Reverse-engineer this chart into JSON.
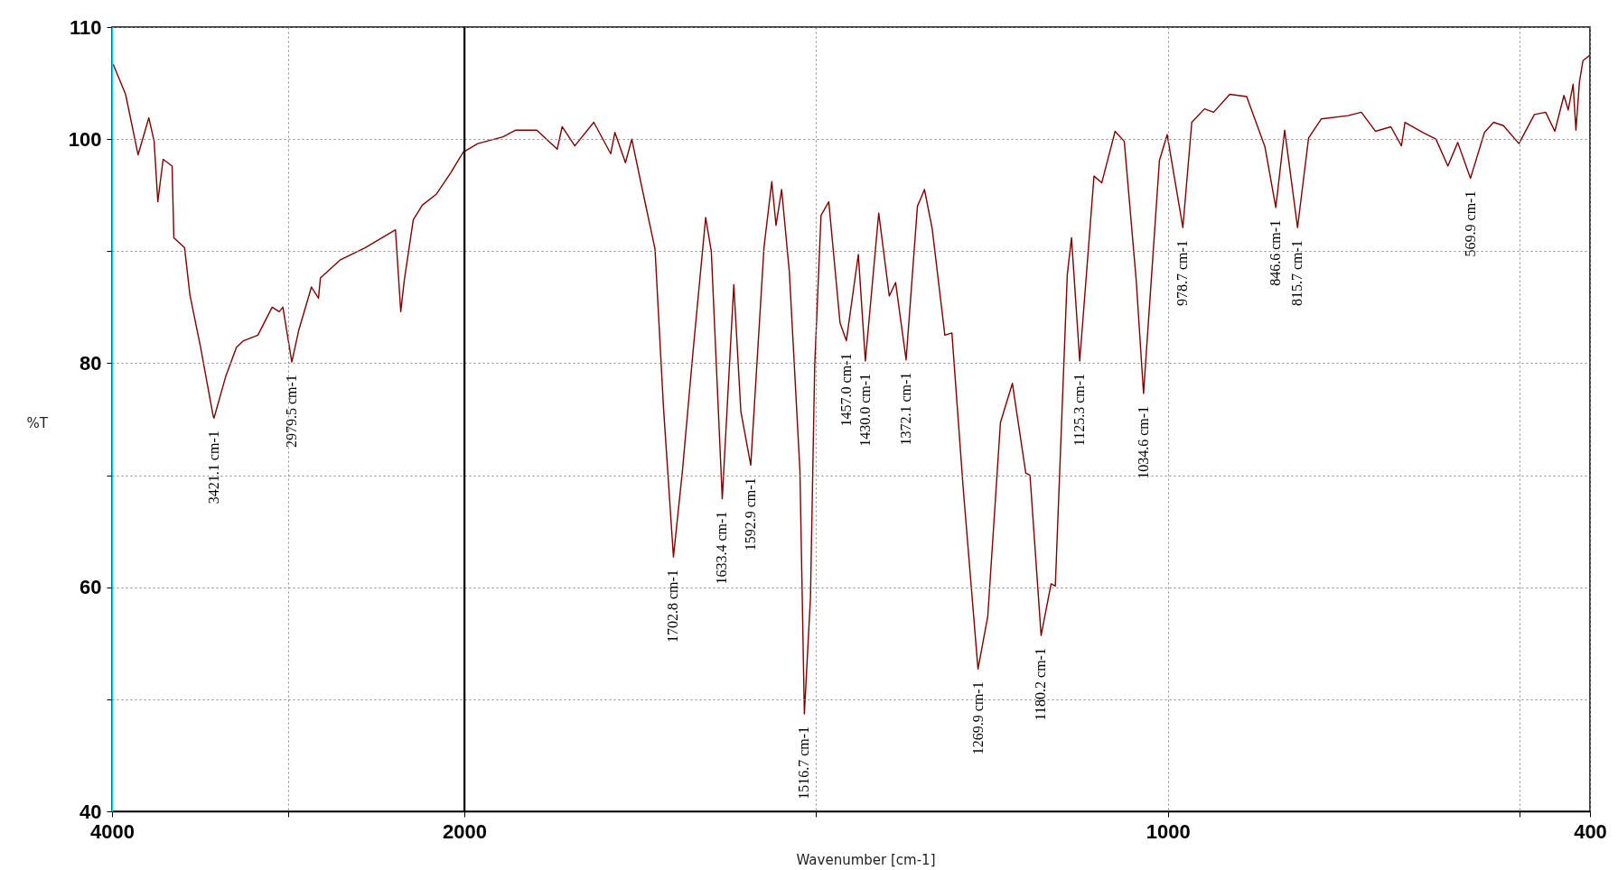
{
  "chart_data": [
    {
      "type": "line",
      "ylabel": "%T",
      "xlim": [
        4000,
        2000
      ],
      "ylim": [
        40,
        110
      ],
      "xticks": [
        4000,
        {
          "value": 3000,
          "label": null
        },
        2000
      ],
      "yticks": [
        40,
        {
          "value": 50,
          "label": null
        },
        60,
        {
          "value": 70,
          "label": null
        },
        80,
        {
          "value": 90,
          "label": null
        },
        100,
        110
      ],
      "grid": true,
      "series": [
        {
          "color": "#800000",
          "x": [
            3994,
            3923,
            3852,
            3791,
            3761,
            3740,
            3710,
            3659,
            3649,
            3588,
            3558,
            3497,
            3426,
            3421.1,
            3355,
            3294,
            3254,
            3172,
            3091,
            3051,
            3030,
            2979.5,
            2939,
            2868,
            2828,
            2817,
            2706,
            2564,
            2391,
            2361,
            2341,
            2290,
            2239,
            2158,
            2077,
            2000
          ],
          "values": [
            106.7,
            104.0,
            98.6,
            101.9,
            99.8,
            94.4,
            98.2,
            97.6,
            91.2,
            90.3,
            86.1,
            81.4,
            75.3,
            75.1,
            78.8,
            81.4,
            82.0,
            82.5,
            85.0,
            84.6,
            85.0,
            80.1,
            83.0,
            86.8,
            85.8,
            87.6,
            89.2,
            90.3,
            91.9,
            84.6,
            87.4,
            92.8,
            94.1,
            95.1,
            97.0,
            99.0
          ]
        }
      ],
      "annotations": [
        {
          "text": "3421.1 cm-1",
          "x": 3421.1,
          "y": 75.1
        },
        {
          "text": "2979.5 cm-1",
          "x": 2979.5,
          "y": 80.1
        }
      ]
    },
    {
      "type": "line",
      "xlabel": "Wavenumber [cm-1]",
      "xlim": [
        2000,
        400
      ],
      "ylim": [
        40,
        110
      ],
      "xticks": [
        {
          "value": 1500,
          "label": null
        },
        1000,
        {
          "value": 500,
          "label": null
        },
        400
      ],
      "yticks": [
        40,
        {
          "value": 50,
          "label": null
        },
        60,
        {
          "value": 70,
          "label": null
        },
        80,
        {
          "value": 90,
          "label": null
        },
        100,
        110
      ],
      "grid": true,
      "tick_labels": "x",
      "series": [
        {
          "color": "#800000",
          "x": [
            2000,
            1981,
            1945,
            1927,
            1897,
            1868,
            1861,
            1843,
            1816,
            1792,
            1786,
            1771,
            1762,
            1747,
            1729,
            1717,
            1702.8,
            1690,
            1675,
            1657,
            1649,
            1633.4,
            1617,
            1607,
            1592.9,
            1574,
            1563,
            1557,
            1549,
            1538,
            1523,
            1516.7,
            1508,
            1502,
            1493,
            1482,
            1466,
            1457.0,
            1440,
            1430.0,
            1411,
            1396,
            1387,
            1372.1,
            1356,
            1346,
            1335,
            1317,
            1307,
            1291,
            1269.9,
            1256,
            1238,
            1221,
            1202,
            1196,
            1180.2,
            1166,
            1160,
            1143,
            1137,
            1125.3,
            1105,
            1094,
            1075,
            1062,
            1045,
            1034.6,
            1012,
            1001,
            978.7,
            966,
            948,
            935,
            912,
            888,
            862,
            846.6,
            834,
            815.7,
            800,
            782,
            744,
            725,
            705,
            683,
            668,
            663,
            638,
            619,
            602,
            588,
            569.9,
            550,
            537,
            523,
            501,
            479,
            463,
            450,
            437,
            431,
            424,
            420,
            415,
            410,
            400
          ],
          "values": [
            98.9,
            99.6,
            100.2,
            100.8,
            100.8,
            99.1,
            101.1,
            99.4,
            101.5,
            98.7,
            100.6,
            97.9,
            100.0,
            95.5,
            90.2,
            76.1,
            62.7,
            70.4,
            81.0,
            93.0,
            90.0,
            67.9,
            87.0,
            75.7,
            70.9,
            90.4,
            96.2,
            92.3,
            95.5,
            88.1,
            70.4,
            48.7,
            59.1,
            79.8,
            93.2,
            94.4,
            83.6,
            82.0,
            89.7,
            80.2,
            93.4,
            86.0,
            87.2,
            80.3,
            94.0,
            95.5,
            92.0,
            82.5,
            82.7,
            68.9,
            52.7,
            57.4,
            74.7,
            78.2,
            70.2,
            70.0,
            55.7,
            60.3,
            60.1,
            87.9,
            91.2,
            80.2,
            96.7,
            96.1,
            100.7,
            99.8,
            87.4,
            77.3,
            98.1,
            100.4,
            92.1,
            101.5,
            102.7,
            102.4,
            104.0,
            103.8,
            99.3,
            93.9,
            100.8,
            92.1,
            100.1,
            101.8,
            102.1,
            102.4,
            100.7,
            101.1,
            99.4,
            101.5,
            100.6,
            100.0,
            97.6,
            99.7,
            96.5,
            100.6,
            101.5,
            101.2,
            99.6,
            102.2,
            102.4,
            100.7,
            103.9,
            102.6,
            104.9,
            100.8,
            105.1,
            107.0,
            107.5
          ]
        }
      ],
      "annotations": [
        {
          "text": "1702.8 cm-1",
          "x": 1702.8,
          "y": 62.7
        },
        {
          "text": "1633.4 cm-1",
          "x": 1633.4,
          "y": 67.9
        },
        {
          "text": "1592.9 cm-1",
          "x": 1592.9,
          "y": 70.9
        },
        {
          "text": "1516.7 cm-1",
          "x": 1516.7,
          "y": 48.7
        },
        {
          "text": "1457.0 cm-1",
          "x": 1457.0,
          "y": 82.0
        },
        {
          "text": "1430.0 cm-1",
          "x": 1430.0,
          "y": 80.2
        },
        {
          "text": "1372.1 cm-1",
          "x": 1372.1,
          "y": 80.3
        },
        {
          "text": "1269.9 cm-1",
          "x": 1269.9,
          "y": 52.7
        },
        {
          "text": "1180.2 cm-1",
          "x": 1180.2,
          "y": 55.7
        },
        {
          "text": "1125.3 cm-1",
          "x": 1125.3,
          "y": 80.2
        },
        {
          "text": "1034.6 cm-1",
          "x": 1034.6,
          "y": 77.3
        },
        {
          "text": "978.7 cm-1",
          "x": 978.7,
          "y": 92.1
        },
        {
          "text": "846.6 cm-1",
          "x": 846.6,
          "y": 93.9
        },
        {
          "text": "815.7 cm-1",
          "x": 815.7,
          "y": 92.1
        },
        {
          "text": "569.9 cm-1",
          "x": 569.9,
          "y": 96.5
        }
      ]
    }
  ]
}
